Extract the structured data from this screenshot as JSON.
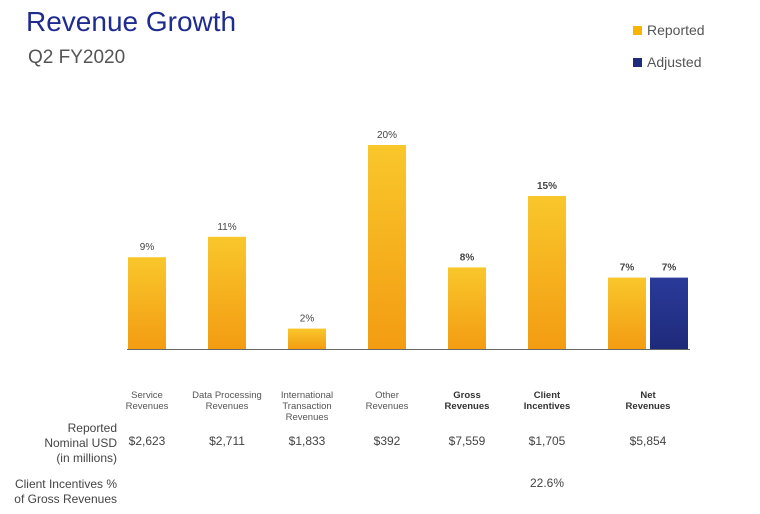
{
  "header": {
    "title": "Revenue Growth",
    "subtitle": "Q2 FY2020"
  },
  "colors": {
    "reported": "#f7b500",
    "reported_bottom": "#f39c12",
    "adjusted": "#1e2a7a",
    "baseline": "#666666"
  },
  "chart_data": {
    "type": "bar",
    "categories": [
      "Service Revenues",
      "Data Processing Revenues",
      "International Transaction Revenues",
      "Other Revenues",
      "Gross Revenues",
      "Client Incentives",
      "Net Revenues"
    ],
    "category_bold": [
      false,
      false,
      false,
      false,
      true,
      true,
      true
    ],
    "series": [
      {
        "name": "Reported",
        "values": [
          9,
          11,
          2,
          20,
          8,
          15,
          7
        ],
        "labels": [
          "9%",
          "11%",
          "2%",
          "20%",
          "8%",
          "15%",
          "7%"
        ]
      },
      {
        "name": "Adjusted",
        "values": [
          null,
          null,
          null,
          null,
          null,
          null,
          7
        ],
        "labels": [
          null,
          null,
          null,
          null,
          null,
          null,
          "7%"
        ]
      }
    ],
    "ylim": [
      0,
      20
    ],
    "legend": "top-right",
    "grid": false
  },
  "table": {
    "reported_row_title": [
      "Reported",
      "Nominal USD",
      "(in millions)"
    ],
    "reported_values": [
      "$2,623",
      "$2,711",
      "$1,833",
      "$392",
      "$7,559",
      "$1,705",
      "$5,854"
    ],
    "incentive_row_title": [
      "Client Incentives %",
      "of Gross Revenues"
    ],
    "incentive_values": [
      "",
      "",
      "",
      "",
      "",
      "22.6%",
      ""
    ]
  }
}
